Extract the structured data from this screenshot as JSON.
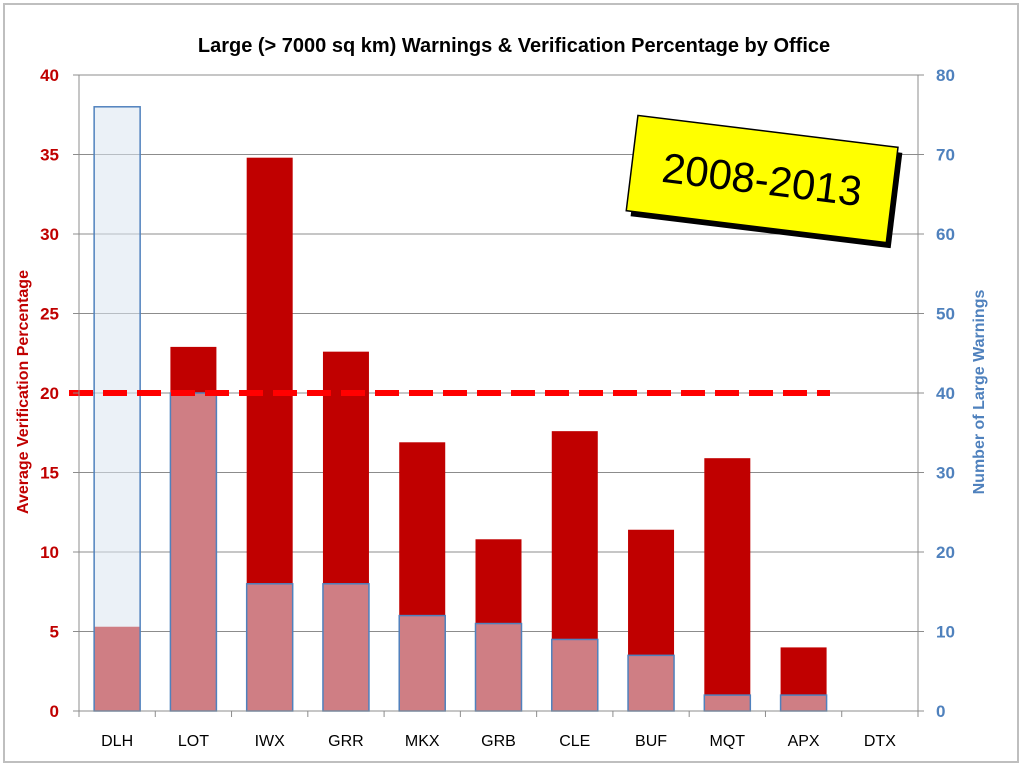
{
  "chart_data": {
    "type": "bar",
    "title": "Large (> 7000 sq km) Warnings & Verification Percentage by Office",
    "categories": [
      "DLH",
      "LOT",
      "IWX",
      "GRR",
      "MKX",
      "GRB",
      "CLE",
      "BUF",
      "MQT",
      "APX",
      "DTX"
    ],
    "series": [
      {
        "name": "",
        "axis": "left",
        "color": "#c00000",
        "values": [
          5.3,
          22.9,
          34.8,
          22.6,
          16.9,
          10.8,
          17.6,
          11.4,
          15.9,
          4.0,
          0
        ]
      },
      {
        "name": "",
        "axis": "right",
        "color": "#4f81bd",
        "values": [
          76,
          40,
          16,
          16,
          12,
          11,
          9,
          7,
          2,
          2,
          0
        ]
      }
    ],
    "reference_line": {
      "axis": "left",
      "value": 20,
      "color": "#ff0000",
      "style": "dashed"
    },
    "ylabel": "Average Verification Percentage",
    "ylabel_right": "Number of Large Warnings",
    "ylim": [
      0,
      40
    ],
    "ylim_right": [
      0,
      80
    ],
    "yticks": [
      0,
      5,
      10,
      15,
      20,
      25,
      30,
      35,
      40
    ],
    "yticks_right": [
      0,
      10,
      20,
      30,
      40,
      50,
      60,
      70,
      80
    ],
    "grid": true,
    "legend": "none"
  },
  "badge": {
    "text": "2008-2013",
    "color": "#ffff00"
  }
}
